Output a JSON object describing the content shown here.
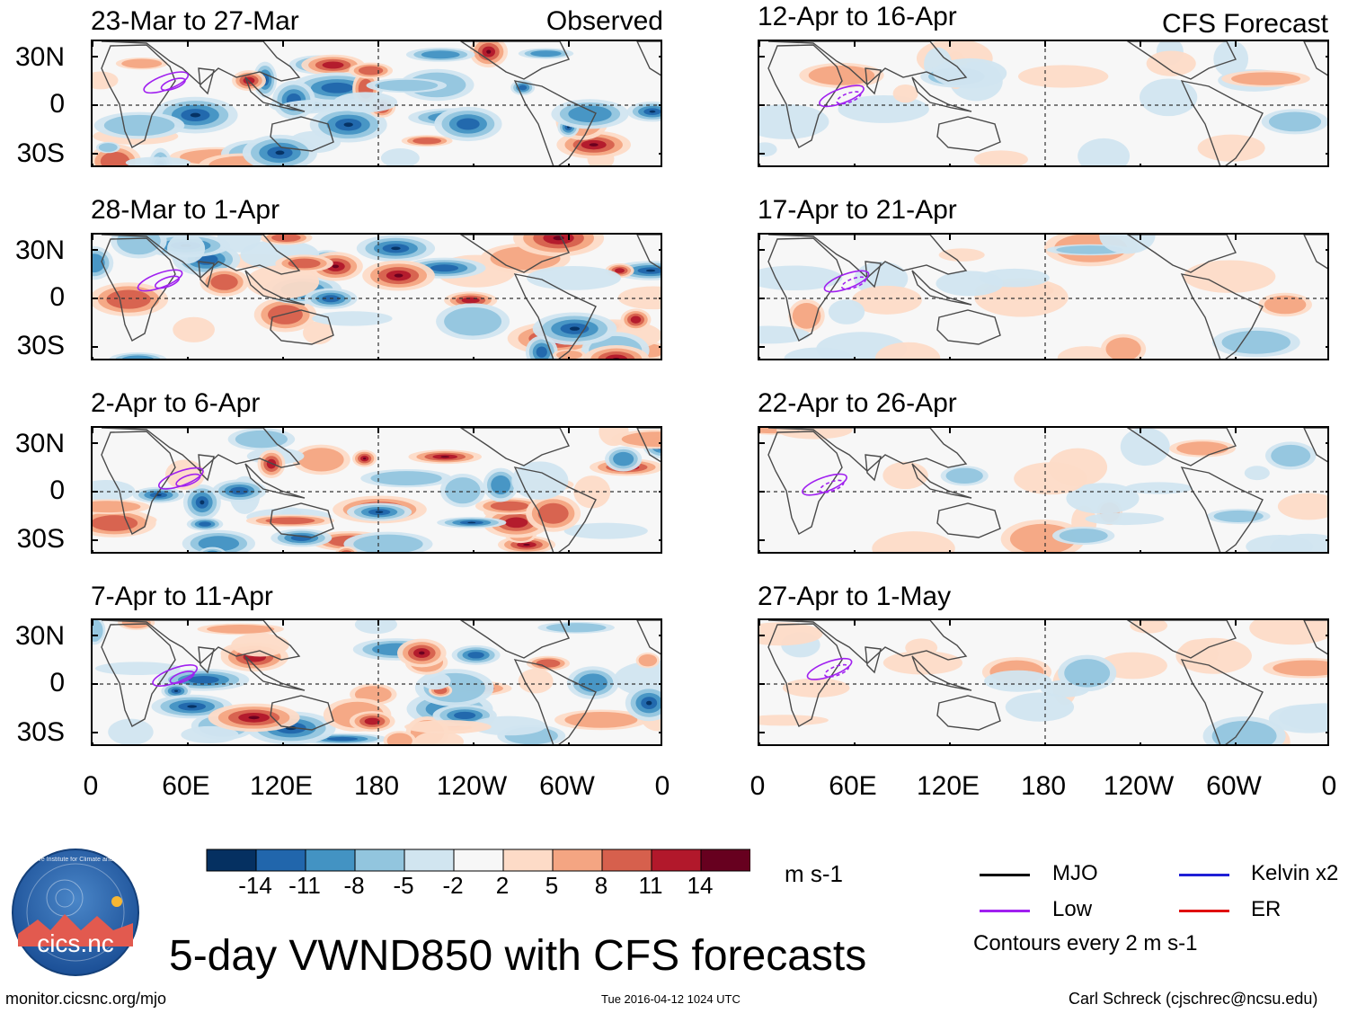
{
  "figure_title": "5-day VWND850 with CFS forecasts",
  "observed_label": "Observed",
  "forecast_label": "CFS Forecast",
  "panels_left": [
    {
      "title": "23-Mar to 27-Mar"
    },
    {
      "title": "28-Mar to 1-Apr"
    },
    {
      "title": "2-Apr to 6-Apr"
    },
    {
      "title": "7-Apr to 11-Apr"
    }
  ],
  "panels_right": [
    {
      "title": "12-Apr to 16-Apr"
    },
    {
      "title": "17-Apr to 21-Apr"
    },
    {
      "title": "22-Apr to 26-Apr"
    },
    {
      "title": "27-Apr to 1-May"
    }
  ],
  "y_ticks": [
    "30N",
    "0",
    "30S"
  ],
  "x_ticks": [
    "0",
    "60E",
    "120E",
    "180",
    "120W",
    "60W",
    "0"
  ],
  "colorbar": {
    "units": "m s-1",
    "labels": [
      "-14",
      "-11",
      "-8",
      "-5",
      "-2",
      "2",
      "5",
      "8",
      "11",
      "14"
    ],
    "colors": [
      "#053061",
      "#2166ac",
      "#4393c3",
      "#92c5de",
      "#d1e5f0",
      "#f7f7f7",
      "#fddbc7",
      "#f4a582",
      "#d6604d",
      "#b2182b",
      "#67001f"
    ]
  },
  "legend": {
    "items": [
      {
        "label": "MJO",
        "color": "#000000"
      },
      {
        "label": "Kelvin x2",
        "color": "#1f1fd6"
      },
      {
        "label": "Low",
        "color": "#a020f0"
      },
      {
        "label": "ER",
        "color": "#e01010"
      }
    ],
    "note": "Contours every 2 m s-1"
  },
  "logo_text": "cics.nc",
  "logo_ring_text": "Cooperative Institute for Climate and Satellites",
  "footer": {
    "website": "monitor.cicsnc.org/mjo",
    "timestamp": "Tue 2016-04-12 1024 UTC",
    "author": "Carl Schreck (cjschrec@ncsu.edu)"
  }
}
